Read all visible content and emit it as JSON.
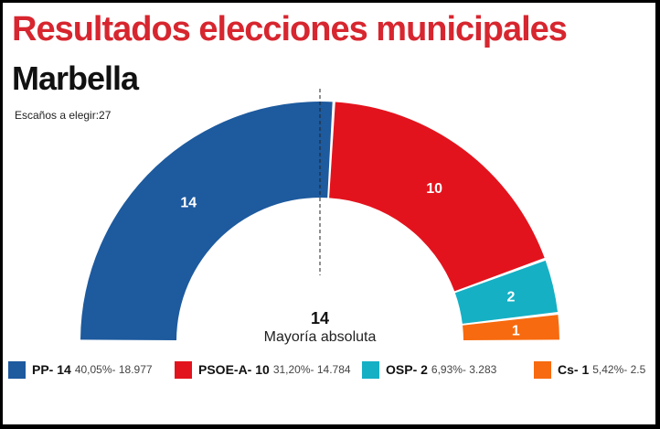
{
  "header": {
    "title": "Resultados elecciones municipales",
    "subtitle": "Marbella",
    "seats_note": "Escaños a elegir:27"
  },
  "center": {
    "majority_value": "14",
    "majority_label": "Mayoría absoluta"
  },
  "chart_data": {
    "type": "pie",
    "variant": "semicircle-hemicycle",
    "total_seats": 27,
    "majority": 14,
    "majority_line": true,
    "categories": [
      "PP",
      "PSOE-A",
      "OSP",
      "Cs"
    ],
    "values": [
      14,
      10,
      2,
      1
    ],
    "colors": [
      "#1d5a9e",
      "#e3131d",
      "#15b0c4",
      "#f76a0f"
    ],
    "slice_labels": [
      "14",
      "10",
      "2",
      "1"
    ],
    "legend_placement": "bottom",
    "legend": [
      {
        "party": "PP- 14",
        "stats": "40,05%- 18.977",
        "color": "#1d5a9e"
      },
      {
        "party": "PSOE-A- 10",
        "stats": "31,20%- 14.784",
        "color": "#e3131d"
      },
      {
        "party": "OSP- 2",
        "stats": "6,93%- 3.283",
        "color": "#15b0c4"
      },
      {
        "party": "Cs- 1",
        "stats": "5,42%- 2.5",
        "color": "#f76a0f"
      }
    ]
  }
}
